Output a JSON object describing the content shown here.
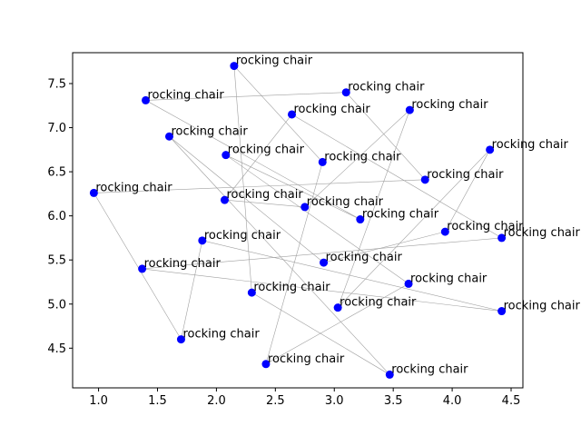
{
  "chart_data": {
    "type": "scatter",
    "title": "",
    "xlabel": "",
    "ylabel": "",
    "xlim": [
      0.78,
      4.6
    ],
    "ylim": [
      4.05,
      7.85
    ],
    "xticks": [
      1.0,
      1.5,
      2.0,
      2.5,
      3.0,
      3.5,
      4.0,
      4.5
    ],
    "xtick_labels": [
      "1.0",
      "1.5",
      "2.0",
      "2.5",
      "3.0",
      "3.5",
      "4.0",
      "4.5"
    ],
    "yticks": [
      4.5,
      5.0,
      5.5,
      6.0,
      6.5,
      7.0,
      7.5
    ],
    "ytick_labels": [
      "4.5",
      "5.0",
      "5.5",
      "6.0",
      "6.5",
      "7.0",
      "7.5"
    ],
    "grid": false,
    "point_color": "#0000ff",
    "line_color": "#a0a0a0",
    "points": [
      {
        "x": 2.15,
        "y": 7.7,
        "label": "rocking chair"
      },
      {
        "x": 3.1,
        "y": 7.4,
        "label": "rocking chair"
      },
      {
        "x": 1.4,
        "y": 7.31,
        "label": "rocking chair"
      },
      {
        "x": 3.64,
        "y": 7.2,
        "label": "rocking chair"
      },
      {
        "x": 2.64,
        "y": 7.15,
        "label": "rocking chair"
      },
      {
        "x": 1.6,
        "y": 6.9,
        "label": "rocking chair"
      },
      {
        "x": 4.32,
        "y": 6.75,
        "label": "rocking chair"
      },
      {
        "x": 2.08,
        "y": 6.69,
        "label": "rocking chair"
      },
      {
        "x": 2.9,
        "y": 6.61,
        "label": "rocking chair"
      },
      {
        "x": 3.77,
        "y": 6.41,
        "label": "rocking chair"
      },
      {
        "x": 0.96,
        "y": 6.26,
        "label": "rocking chair"
      },
      {
        "x": 2.07,
        "y": 6.18,
        "label": "rocking chair"
      },
      {
        "x": 2.75,
        "y": 6.1,
        "label": "rocking chair"
      },
      {
        "x": 3.22,
        "y": 5.96,
        "label": "rocking chair"
      },
      {
        "x": 3.94,
        "y": 5.82,
        "label": "rocking chair"
      },
      {
        "x": 4.42,
        "y": 5.75,
        "label": "rocking chair"
      },
      {
        "x": 1.88,
        "y": 5.72,
        "label": "rocking chair"
      },
      {
        "x": 2.91,
        "y": 5.47,
        "label": "rocking chair"
      },
      {
        "x": 1.37,
        "y": 5.4,
        "label": "rocking chair"
      },
      {
        "x": 3.63,
        "y": 5.23,
        "label": "rocking chair"
      },
      {
        "x": 2.3,
        "y": 5.13,
        "label": "rocking chair"
      },
      {
        "x": 3.03,
        "y": 4.96,
        "label": "rocking chair"
      },
      {
        "x": 4.42,
        "y": 4.92,
        "label": "rocking chair"
      },
      {
        "x": 1.7,
        "y": 4.6,
        "label": "rocking chair"
      },
      {
        "x": 2.42,
        "y": 4.32,
        "label": "rocking chair"
      },
      {
        "x": 3.47,
        "y": 4.2,
        "label": "rocking chair"
      }
    ],
    "connections": [
      [
        10,
        9
      ],
      [
        9,
        1
      ],
      [
        1,
        2
      ],
      [
        2,
        13
      ],
      [
        13,
        7
      ],
      [
        7,
        19
      ],
      [
        19,
        24
      ],
      [
        24,
        8
      ],
      [
        8,
        0
      ],
      [
        0,
        20
      ],
      [
        20,
        25
      ],
      [
        25,
        5
      ],
      [
        5,
        17
      ],
      [
        17,
        14
      ],
      [
        14,
        6
      ],
      [
        6,
        21
      ],
      [
        21,
        3
      ],
      [
        3,
        12
      ],
      [
        12,
        11
      ],
      [
        11,
        4
      ],
      [
        4,
        15
      ],
      [
        15,
        18
      ],
      [
        18,
        22
      ],
      [
        22,
        16
      ],
      [
        16,
        23
      ],
      [
        23,
        10
      ]
    ]
  }
}
